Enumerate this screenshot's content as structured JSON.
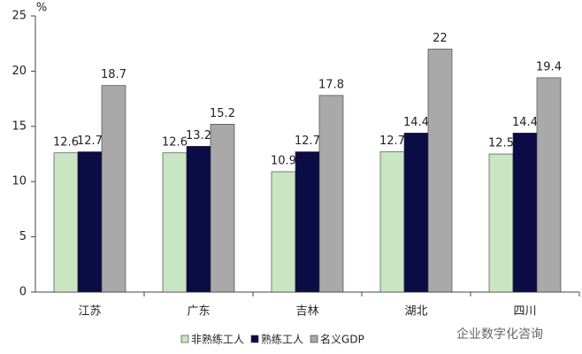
{
  "chart_data": {
    "type": "bar",
    "y_label": "%",
    "categories": [
      "江苏",
      "广东",
      "吉林",
      "湖北",
      "四川"
    ],
    "series": [
      {
        "name": "非熟练工人",
        "color": "#c8e6c2",
        "values": [
          12.6,
          12.6,
          10.9,
          12.7,
          12.5
        ]
      },
      {
        "name": "熟练工人",
        "color": "#0b0b45",
        "values": [
          12.7,
          13.2,
          12.7,
          14.4,
          14.4
        ]
      },
      {
        "name": "名义GDP",
        "color": "#a9a9a9",
        "values": [
          18.7,
          15.2,
          17.8,
          22,
          19.4
        ]
      }
    ],
    "ylim": [
      0,
      25
    ],
    "yticks": [
      0,
      5,
      10,
      15,
      20,
      25
    ],
    "grid": false,
    "legend": "bottom",
    "watermark": "企业数字化咨询"
  }
}
